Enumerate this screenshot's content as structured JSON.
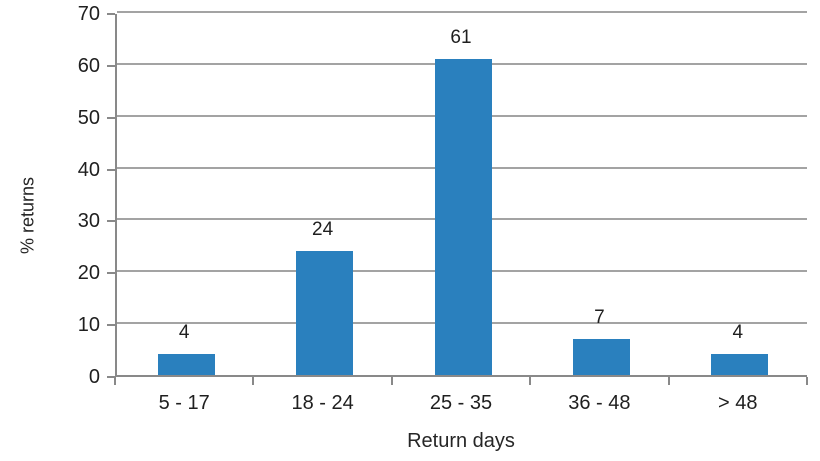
{
  "chart_data": {
    "type": "bar",
    "title": "",
    "categories": [
      "5 - 17",
      "18 - 24",
      "25 - 35",
      "36 - 48",
      "> 48"
    ],
    "values": [
      4,
      24,
      61,
      7,
      4
    ],
    "xlabel": "Return days",
    "ylabel": "% returns",
    "ylim": [
      0,
      70
    ],
    "yticks": [
      0,
      10,
      20,
      30,
      40,
      50,
      60,
      70
    ],
    "grid": true,
    "legend_position": "none",
    "data_labels_shown": true,
    "colors": {
      "bar": "#2a80be",
      "gridline": "#a3a3a3",
      "axis": "#898989",
      "text": "#1f1f1f"
    }
  }
}
